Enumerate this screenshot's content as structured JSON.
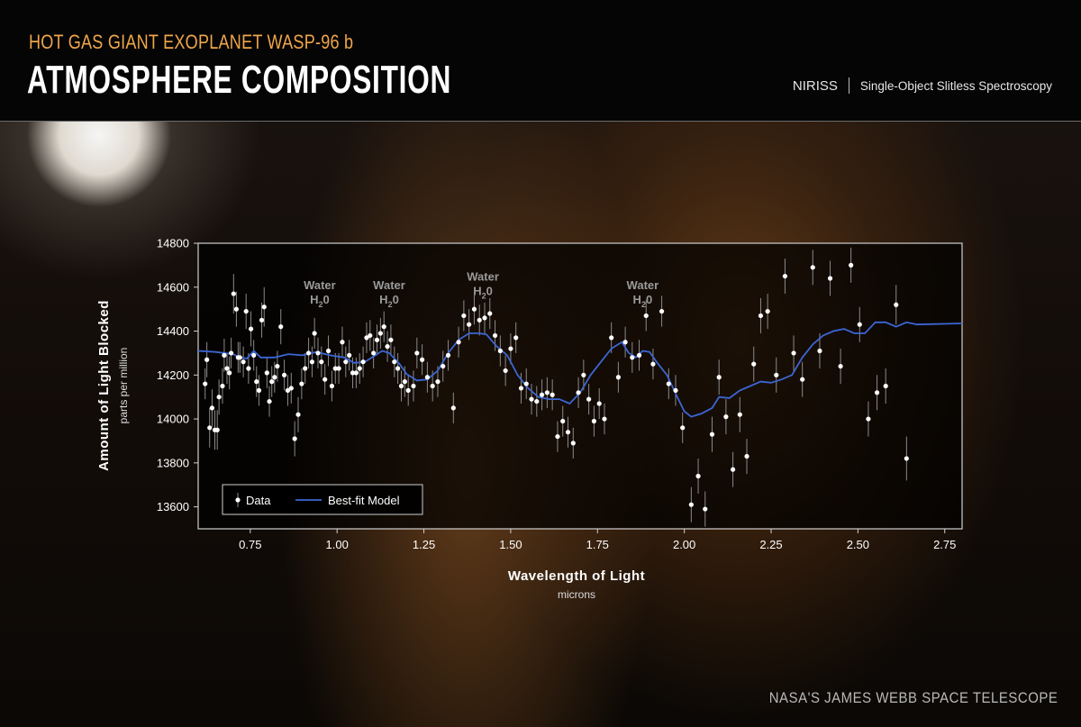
{
  "header": {
    "subtitle": "HOT GAS GIANT EXOPLANET WASP-96 b",
    "title": "ATMOSPHERE COMPOSITION",
    "instrument": "NIRISS",
    "mode": "Single-Object Slitless Spectroscopy"
  },
  "footer": {
    "credit": "NASA'S JAMES WEBB SPACE TELESCOPE"
  },
  "colors": {
    "accent": "#f0a64a",
    "model": "#3b66d4",
    "data": "#ffffff",
    "errorbar": "#8a8a8a"
  },
  "chart_data": {
    "type": "scatter",
    "xlabel": "Wavelength of Light",
    "xunit": "microns",
    "ylabel": "Amount of Light Blocked",
    "yunit": "parts per million",
    "xlim": [
      0.6,
      2.8
    ],
    "ylim": [
      13500,
      14800
    ],
    "xticks": [
      0.75,
      1.0,
      1.25,
      1.5,
      1.75,
      2.0,
      2.25,
      2.5,
      2.75
    ],
    "xtick_labels": [
      "0.75",
      "1.00",
      "1.25",
      "1.50",
      "1.75",
      "2.00",
      "2.25",
      "2.50",
      "2.75"
    ],
    "yticks": [
      13600,
      13800,
      14000,
      14200,
      14400,
      14600,
      14800
    ],
    "legend": {
      "placement": "bottom-left",
      "data_label": "Data",
      "model_label": "Best-fit Model"
    },
    "annotations": [
      {
        "line1": "Water",
        "line2": "H",
        "sub": "2",
        "tail": "0",
        "x": 0.95,
        "y": 14590
      },
      {
        "line1": "Water",
        "line2": "H",
        "sub": "2",
        "tail": "0",
        "x": 1.15,
        "y": 14590
      },
      {
        "line1": "Water",
        "line2": "H",
        "sub": "2",
        "tail": "0",
        "x": 1.42,
        "y": 14630
      },
      {
        "line1": "Water",
        "line2": "H",
        "sub": "2",
        "tail": "0",
        "x": 1.88,
        "y": 14590
      }
    ],
    "series": [
      {
        "name": "Data",
        "kind": "points",
        "points": [
          [
            0.62,
            14160,
            70
          ],
          [
            0.625,
            14270,
            80
          ],
          [
            0.633,
            13960,
            90
          ],
          [
            0.64,
            14050,
            85
          ],
          [
            0.648,
            13950,
            90
          ],
          [
            0.655,
            13950,
            90
          ],
          [
            0.66,
            14100,
            80
          ],
          [
            0.67,
            14150,
            80
          ],
          [
            0.675,
            14290,
            75
          ],
          [
            0.683,
            14230,
            70
          ],
          [
            0.69,
            14210,
            75
          ],
          [
            0.695,
            14300,
            70
          ],
          [
            0.702,
            14570,
            90
          ],
          [
            0.71,
            14500,
            80
          ],
          [
            0.715,
            14280,
            70
          ],
          [
            0.72,
            14280,
            70
          ],
          [
            0.73,
            14260,
            70
          ],
          [
            0.738,
            14490,
            80
          ],
          [
            0.745,
            14230,
            70
          ],
          [
            0.752,
            14410,
            80
          ],
          [
            0.76,
            14290,
            70
          ],
          [
            0.768,
            14170,
            70
          ],
          [
            0.775,
            14130,
            70
          ],
          [
            0.783,
            14450,
            80
          ],
          [
            0.79,
            14510,
            90
          ],
          [
            0.798,
            14210,
            70
          ],
          [
            0.805,
            14080,
            70
          ],
          [
            0.812,
            14170,
            70
          ],
          [
            0.82,
            14190,
            70
          ],
          [
            0.828,
            14240,
            70
          ],
          [
            0.838,
            14420,
            80
          ],
          [
            0.848,
            14200,
            70
          ],
          [
            0.858,
            14130,
            70
          ],
          [
            0.868,
            14140,
            70
          ],
          [
            0.878,
            13910,
            80
          ],
          [
            0.888,
            14020,
            80
          ],
          [
            0.898,
            14160,
            70
          ],
          [
            0.908,
            14230,
            70
          ],
          [
            0.918,
            14300,
            70
          ],
          [
            0.928,
            14260,
            70
          ],
          [
            0.935,
            14390,
            70
          ],
          [
            0.945,
            14300,
            70
          ],
          [
            0.955,
            14260,
            70
          ],
          [
            0.965,
            14180,
            70
          ],
          [
            0.975,
            14310,
            70
          ],
          [
            0.985,
            14150,
            70
          ],
          [
            0.995,
            14230,
            70
          ],
          [
            1.005,
            14230,
            70
          ],
          [
            1.015,
            14350,
            70
          ],
          [
            1.025,
            14260,
            70
          ],
          [
            1.035,
            14290,
            70
          ],
          [
            1.045,
            14210,
            70
          ],
          [
            1.055,
            14210,
            70
          ],
          [
            1.065,
            14230,
            70
          ],
          [
            1.075,
            14260,
            70
          ],
          [
            1.085,
            14370,
            70
          ],
          [
            1.095,
            14380,
            70
          ],
          [
            1.105,
            14300,
            70
          ],
          [
            1.115,
            14360,
            70
          ],
          [
            1.125,
            14390,
            70
          ],
          [
            1.135,
            14420,
            70
          ],
          [
            1.145,
            14330,
            70
          ],
          [
            1.155,
            14360,
            70
          ],
          [
            1.165,
            14260,
            70
          ],
          [
            1.175,
            14230,
            70
          ],
          [
            1.185,
            14150,
            70
          ],
          [
            1.195,
            14170,
            70
          ],
          [
            1.205,
            14130,
            70
          ],
          [
            1.22,
            14150,
            70
          ],
          [
            1.23,
            14300,
            70
          ],
          [
            1.245,
            14270,
            70
          ],
          [
            1.26,
            14190,
            70
          ],
          [
            1.275,
            14150,
            70
          ],
          [
            1.29,
            14170,
            70
          ],
          [
            1.305,
            14240,
            70
          ],
          [
            1.32,
            14290,
            70
          ],
          [
            1.335,
            14050,
            70
          ],
          [
            1.35,
            14350,
            70
          ],
          [
            1.365,
            14470,
            70
          ],
          [
            1.38,
            14430,
            70
          ],
          [
            1.395,
            14500,
            70
          ],
          [
            1.41,
            14450,
            70
          ],
          [
            1.425,
            14460,
            70
          ],
          [
            1.44,
            14480,
            70
          ],
          [
            1.455,
            14380,
            70
          ],
          [
            1.47,
            14310,
            70
          ],
          [
            1.485,
            14220,
            70
          ],
          [
            1.5,
            14320,
            70
          ],
          [
            1.515,
            14370,
            70
          ],
          [
            1.53,
            14140,
            70
          ],
          [
            1.545,
            14160,
            70
          ],
          [
            1.56,
            14090,
            70
          ],
          [
            1.575,
            14080,
            70
          ],
          [
            1.59,
            14110,
            70
          ],
          [
            1.605,
            14120,
            70
          ],
          [
            1.62,
            14110,
            70
          ],
          [
            1.635,
            13920,
            70
          ],
          [
            1.65,
            13990,
            70
          ],
          [
            1.665,
            13940,
            70
          ],
          [
            1.68,
            13890,
            70
          ],
          [
            1.695,
            14120,
            70
          ],
          [
            1.71,
            14200,
            70
          ],
          [
            1.725,
            14090,
            70
          ],
          [
            1.74,
            13990,
            70
          ],
          [
            1.755,
            14070,
            70
          ],
          [
            1.77,
            14000,
            70
          ],
          [
            1.79,
            14370,
            70
          ],
          [
            1.81,
            14190,
            70
          ],
          [
            1.83,
            14350,
            70
          ],
          [
            1.85,
            14280,
            70
          ],
          [
            1.87,
            14290,
            70
          ],
          [
            1.89,
            14470,
            70
          ],
          [
            1.91,
            14250,
            70
          ],
          [
            1.935,
            14490,
            70
          ],
          [
            1.955,
            14160,
            70
          ],
          [
            1.975,
            14130,
            70
          ],
          [
            1.995,
            13960,
            70
          ],
          [
            2.02,
            13610,
            80
          ],
          [
            2.04,
            13740,
            80
          ],
          [
            2.06,
            13590,
            80
          ],
          [
            2.08,
            13930,
            80
          ],
          [
            2.1,
            14190,
            80
          ],
          [
            2.12,
            14010,
            80
          ],
          [
            2.14,
            13770,
            80
          ],
          [
            2.16,
            14020,
            80
          ],
          [
            2.18,
            13830,
            80
          ],
          [
            2.2,
            14250,
            80
          ],
          [
            2.22,
            14470,
            80
          ],
          [
            2.24,
            14490,
            80
          ],
          [
            2.265,
            14200,
            80
          ],
          [
            2.29,
            14650,
            80
          ],
          [
            2.315,
            14300,
            80
          ],
          [
            2.34,
            14180,
            80
          ],
          [
            2.37,
            14690,
            80
          ],
          [
            2.39,
            14310,
            80
          ],
          [
            2.42,
            14640,
            80
          ],
          [
            2.45,
            14240,
            80
          ],
          [
            2.48,
            14700,
            80
          ],
          [
            2.505,
            14430,
            80
          ],
          [
            2.53,
            14000,
            80
          ],
          [
            2.555,
            14120,
            80
          ],
          [
            2.58,
            14150,
            80
          ],
          [
            2.61,
            14520,
            90
          ],
          [
            2.64,
            13820,
            100
          ]
        ]
      },
      {
        "name": "Best-fit Model",
        "kind": "line",
        "points": [
          [
            0.6,
            14310
          ],
          [
            0.65,
            14305
          ],
          [
            0.7,
            14295
          ],
          [
            0.72,
            14280
          ],
          [
            0.74,
            14275
          ],
          [
            0.76,
            14310
          ],
          [
            0.78,
            14280
          ],
          [
            0.82,
            14280
          ],
          [
            0.86,
            14295
          ],
          [
            0.9,
            14290
          ],
          [
            0.94,
            14305
          ],
          [
            0.98,
            14290
          ],
          [
            1.02,
            14280
          ],
          [
            1.05,
            14255
          ],
          [
            1.08,
            14260
          ],
          [
            1.11,
            14290
          ],
          [
            1.13,
            14310
          ],
          [
            1.15,
            14300
          ],
          [
            1.18,
            14250
          ],
          [
            1.2,
            14205
          ],
          [
            1.23,
            14175
          ],
          [
            1.26,
            14180
          ],
          [
            1.29,
            14220
          ],
          [
            1.32,
            14300
          ],
          [
            1.35,
            14360
          ],
          [
            1.38,
            14390
          ],
          [
            1.41,
            14390
          ],
          [
            1.43,
            14385
          ],
          [
            1.46,
            14330
          ],
          [
            1.49,
            14290
          ],
          [
            1.52,
            14200
          ],
          [
            1.55,
            14140
          ],
          [
            1.58,
            14100
          ],
          [
            1.61,
            14090
          ],
          [
            1.64,
            14090
          ],
          [
            1.67,
            14070
          ],
          [
            1.7,
            14120
          ],
          [
            1.73,
            14200
          ],
          [
            1.76,
            14260
          ],
          [
            1.79,
            14320
          ],
          [
            1.82,
            14350
          ],
          [
            1.84,
            14300
          ],
          [
            1.86,
            14280
          ],
          [
            1.88,
            14310
          ],
          [
            1.9,
            14305
          ],
          [
            1.92,
            14260
          ],
          [
            1.95,
            14200
          ],
          [
            1.98,
            14100
          ],
          [
            2.0,
            14035
          ],
          [
            2.02,
            14010
          ],
          [
            2.05,
            14025
          ],
          [
            2.08,
            14050
          ],
          [
            2.1,
            14100
          ],
          [
            2.13,
            14095
          ],
          [
            2.16,
            14130
          ],
          [
            2.19,
            14150
          ],
          [
            2.22,
            14170
          ],
          [
            2.25,
            14165
          ],
          [
            2.28,
            14180
          ],
          [
            2.31,
            14200
          ],
          [
            2.34,
            14280
          ],
          [
            2.37,
            14340
          ],
          [
            2.4,
            14380
          ],
          [
            2.43,
            14400
          ],
          [
            2.46,
            14410
          ],
          [
            2.49,
            14390
          ],
          [
            2.52,
            14390
          ],
          [
            2.55,
            14440
          ],
          [
            2.58,
            14440
          ],
          [
            2.61,
            14420
          ],
          [
            2.64,
            14440
          ],
          [
            2.67,
            14430
          ],
          [
            2.8,
            14435
          ]
        ]
      }
    ]
  }
}
